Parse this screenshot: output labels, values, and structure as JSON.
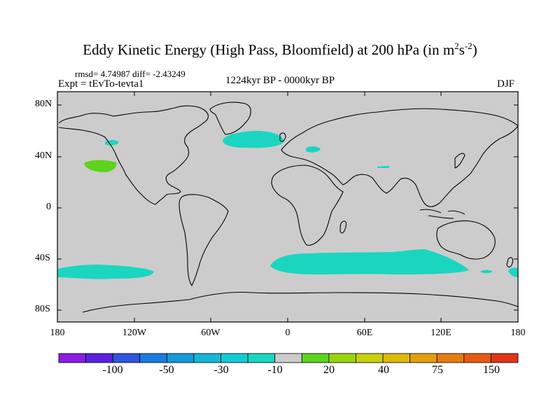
{
  "title": {
    "prefix": "Eddy Kinetic Energy (High Pass, Bloomfield) at 200 hPa (in m",
    "sup1": "2",
    "mid": "s",
    "sup2": "-2",
    "suffix": ")"
  },
  "stats": "rmsd= 4.74987 diff= -2.43249",
  "experiment": "Expt = tEvTo-tevta1",
  "period": "1224kyr BP - 0000kyr BP",
  "season": "DJF",
  "lat_labels": [
    "80N",
    "40N",
    "0",
    "40S",
    "80S"
  ],
  "lon_labels": [
    "180",
    "120W",
    "60W",
    "0",
    "60E",
    "120E",
    "180"
  ],
  "colorbar": {
    "labels": [
      "-100",
      "-50",
      "-30",
      "-10",
      "20",
      "40",
      "75",
      "150"
    ],
    "colors": [
      "#8a1ce6",
      "#5a22e0",
      "#2e55dd",
      "#1b7be0",
      "#1599d8",
      "#16b6d6",
      "#12cbd2",
      "#1ad6c0",
      "#cccccc",
      "#5ed31e",
      "#9ad410",
      "#c9cf0c",
      "#dcbb0a",
      "#e39f0e",
      "#e57c10",
      "#e55a12",
      "#e03518"
    ]
  },
  "map": {
    "land_color": "#cccccc",
    "positive_color": "#5ed31e",
    "negative_color": "#1ad6c0"
  }
}
